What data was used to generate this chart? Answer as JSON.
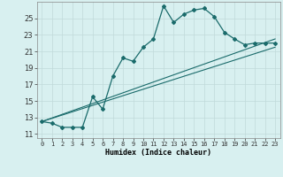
{
  "xlabel": "Humidex (Indice chaleur)",
  "ylabel": "",
  "background_color": "#d8f0f0",
  "line_color": "#1a6b6b",
  "grid_color": "#c0dada",
  "xlim": [
    -0.5,
    23.5
  ],
  "ylim": [
    10.5,
    27
  ],
  "yticks": [
    11,
    13,
    15,
    17,
    19,
    21,
    23,
    25
  ],
  "xticks": [
    0,
    1,
    2,
    3,
    4,
    5,
    6,
    7,
    8,
    9,
    10,
    11,
    12,
    13,
    14,
    15,
    16,
    17,
    18,
    19,
    20,
    21,
    22,
    23
  ],
  "series1_x": [
    0,
    1,
    2,
    3,
    4,
    5,
    6,
    7,
    8,
    9,
    10,
    11,
    12,
    13,
    14,
    15,
    16,
    17,
    18,
    19,
    20,
    21,
    22,
    23
  ],
  "series1_y": [
    12.5,
    12.3,
    11.8,
    11.8,
    11.8,
    15.5,
    14.0,
    18.0,
    20.2,
    19.8,
    21.5,
    22.5,
    26.5,
    24.5,
    25.5,
    26.0,
    26.2,
    25.2,
    23.3,
    22.5,
    21.8,
    22.0,
    22.0,
    22.0
  ],
  "series2_x": [
    0,
    23
  ],
  "series2_y": [
    12.5,
    22.5
  ],
  "series3_x": [
    0,
    23
  ],
  "series3_y": [
    12.5,
    21.5
  ],
  "ytick_fontsize": 6,
  "xtick_fontsize": 5,
  "xlabel_fontsize": 6,
  "figsize": [
    3.2,
    2.0
  ],
  "dpi": 100
}
